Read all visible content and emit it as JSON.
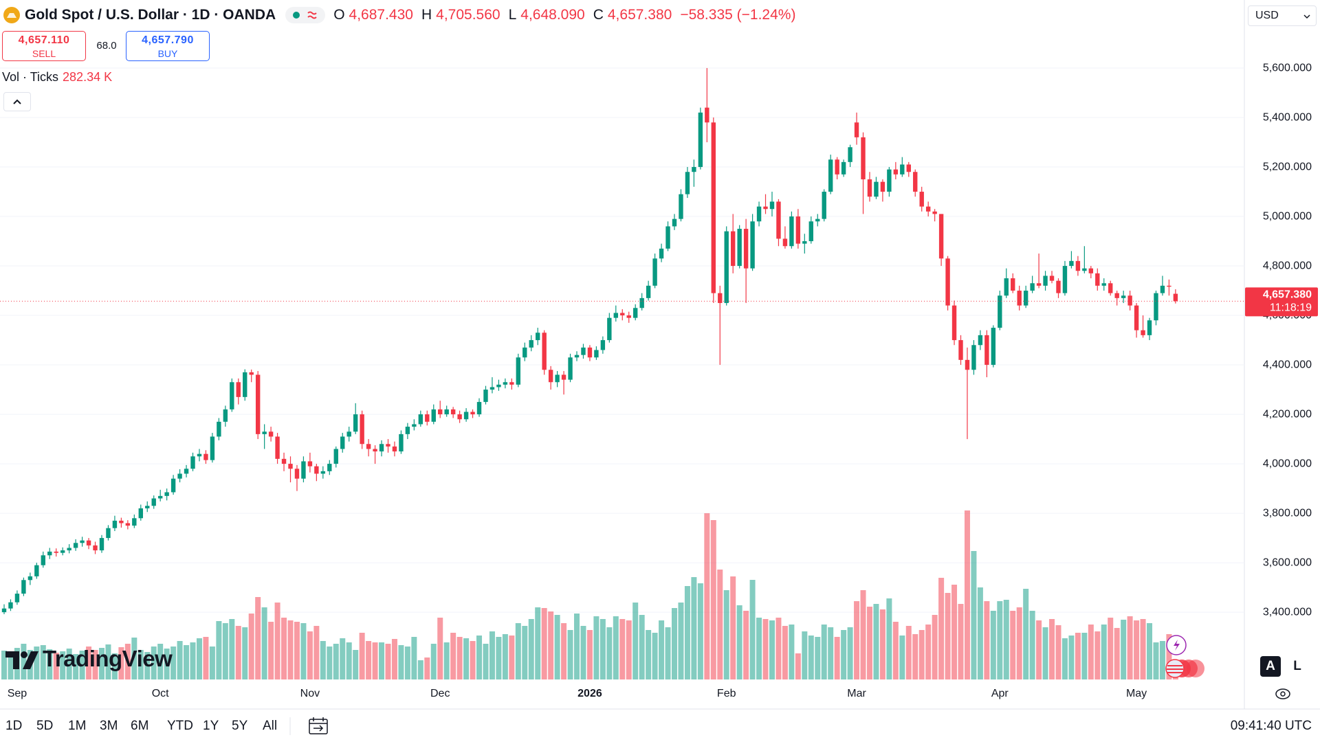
{
  "header": {
    "symbol": "Gold Spot / U.S. Dollar · 1D · OANDA",
    "open_label": "O",
    "open": "4,687.430",
    "high_label": "H",
    "high": "4,705.560",
    "low_label": "L",
    "low": "4,648.090",
    "close_label": "C",
    "close": "4,657.380",
    "change": "−58.335 (−1.24%)"
  },
  "quote": {
    "sell_price": "4,657.110",
    "sell": "SELL",
    "spread": "68.0",
    "buy_price": "4,657.790",
    "buy": "BUY"
  },
  "currency": "USD",
  "watermark": "TradingView",
  "scale_buttons": [
    "A",
    "L"
  ],
  "toolbar": {
    "ranges": [
      "1D",
      "5D",
      "1M",
      "3M",
      "6M",
      "YTD",
      "1Y",
      "5Y",
      "All"
    ],
    "clock": "09:41:40 UTC"
  },
  "chart_data": {
    "type": "candlestick",
    "volume_title": "Vol · Ticks",
    "volume_label": "282.34 K",
    "up_color": "#089981",
    "down_color": "#f23645",
    "ylim": [
      3128,
      5764
    ],
    "yticks": [
      {
        "value": 3400,
        "label": "3,400.000"
      },
      {
        "value": 3600,
        "label": "3,600.000"
      },
      {
        "value": 3800,
        "label": "3,800.000"
      },
      {
        "value": 4000,
        "label": "4,000.000"
      },
      {
        "value": 4200,
        "label": "4,200.000"
      },
      {
        "value": 4400,
        "label": "4,400.000"
      },
      {
        "value": 4600,
        "label": "4,600.000"
      },
      {
        "value": 4800,
        "label": "4,800.000"
      },
      {
        "value": 5000,
        "label": "5,000.000"
      },
      {
        "value": 5200,
        "label": "5,200.000"
      },
      {
        "value": 5400,
        "label": "5,400.000"
      },
      {
        "value": 5600,
        "label": "5,600.000"
      }
    ],
    "grid": true,
    "last_price": {
      "value": 4657.38,
      "label": "4,657.380"
    },
    "countdown": "11:18:19",
    "categories": [
      null,
      null,
      "Sep",
      null,
      null,
      null,
      null,
      null,
      null,
      null,
      null,
      null,
      null,
      null,
      null,
      null,
      null,
      null,
      null,
      null,
      null,
      null,
      null,
      null,
      "Oct",
      null,
      null,
      null,
      null,
      null,
      null,
      null,
      null,
      null,
      null,
      null,
      null,
      null,
      null,
      null,
      null,
      null,
      null,
      null,
      null,
      null,
      null,
      "Nov",
      null,
      null,
      null,
      null,
      null,
      null,
      null,
      null,
      null,
      null,
      null,
      null,
      null,
      null,
      null,
      null,
      null,
      null,
      null,
      "Dec",
      null,
      null,
      null,
      null,
      null,
      null,
      null,
      null,
      null,
      null,
      null,
      null,
      null,
      null,
      null,
      null,
      null,
      null,
      null,
      null,
      null,
      null,
      "2026",
      null,
      null,
      null,
      null,
      null,
      null,
      null,
      null,
      null,
      null,
      null,
      null,
      null,
      null,
      null,
      null,
      null,
      null,
      null,
      null,
      "Feb",
      null,
      null,
      null,
      null,
      null,
      null,
      null,
      null,
      null,
      null,
      null,
      null,
      null,
      null,
      null,
      null,
      null,
      null,
      null,
      "Mar",
      null,
      null,
      null,
      null,
      null,
      null,
      null,
      null,
      null,
      null,
      null,
      null,
      null,
      null,
      null,
      null,
      null,
      null,
      null,
      null,
      null,
      "Apr",
      null,
      null,
      null,
      null,
      null,
      null,
      null,
      null,
      null,
      null,
      null,
      null,
      null,
      null,
      null,
      null,
      null,
      null,
      null,
      null,
      "May",
      null,
      null,
      null,
      null,
      null,
      null
    ],
    "ohlc": [
      [
        3400,
        3432,
        3392,
        3415
      ],
      [
        3415,
        3452,
        3405,
        3440
      ],
      [
        3440,
        3488,
        3430,
        3475
      ],
      [
        3475,
        3540,
        3465,
        3530
      ],
      [
        3530,
        3560,
        3510,
        3545
      ],
      [
        3545,
        3600,
        3535,
        3590
      ],
      [
        3590,
        3645,
        3580,
        3630
      ],
      [
        3630,
        3660,
        3615,
        3645
      ],
      [
        3645,
        3658,
        3625,
        3640
      ],
      [
        3640,
        3662,
        3630,
        3650
      ],
      [
        3650,
        3675,
        3638,
        3660
      ],
      [
        3660,
        3695,
        3648,
        3680
      ],
      [
        3680,
        3705,
        3665,
        3690
      ],
      [
        3690,
        3700,
        3655,
        3670
      ],
      [
        3670,
        3685,
        3635,
        3650
      ],
      [
        3650,
        3712,
        3640,
        3700
      ],
      [
        3700,
        3752,
        3690,
        3740
      ],
      [
        3740,
        3790,
        3728,
        3770
      ],
      [
        3770,
        3782,
        3742,
        3760
      ],
      [
        3760,
        3772,
        3735,
        3750
      ],
      [
        3750,
        3795,
        3740,
        3780
      ],
      [
        3780,
        3835,
        3770,
        3820
      ],
      [
        3820,
        3848,
        3805,
        3830
      ],
      [
        3830,
        3872,
        3818,
        3860
      ],
      [
        3860,
        3895,
        3848,
        3870
      ],
      [
        3870,
        3900,
        3852,
        3885
      ],
      [
        3885,
        3955,
        3875,
        3940
      ],
      [
        3940,
        3978,
        3925,
        3960
      ],
      [
        3960,
        3995,
        3945,
        3980
      ],
      [
        3980,
        4045,
        3970,
        4030
      ],
      [
        4030,
        4060,
        4010,
        4040
      ],
      [
        4040,
        4055,
        4000,
        4015
      ],
      [
        4015,
        4125,
        4005,
        4110
      ],
      [
        4110,
        4185,
        4095,
        4170
      ],
      [
        4170,
        4235,
        4150,
        4220
      ],
      [
        4220,
        4345,
        4210,
        4330
      ],
      [
        4330,
        4345,
        4240,
        4270
      ],
      [
        4270,
        4382,
        4255,
        4370
      ],
      [
        4370,
        4381,
        4330,
        4360
      ],
      [
        4360,
        4375,
        4100,
        4120
      ],
      [
        4120,
        4160,
        4060,
        4130
      ],
      [
        4130,
        4150,
        4090,
        4110
      ],
      [
        4110,
        4125,
        4000,
        4020
      ],
      [
        4020,
        4045,
        3970,
        4000
      ],
      [
        4000,
        4030,
        3925,
        3980
      ],
      [
        3980,
        3995,
        3890,
        3940
      ],
      [
        3940,
        4030,
        3925,
        4010
      ],
      [
        4010,
        4045,
        3965,
        3990
      ],
      [
        3990,
        4000,
        3930,
        3960
      ],
      [
        3960,
        3990,
        3940,
        3970
      ],
      [
        3970,
        4015,
        3955,
        4000
      ],
      [
        4000,
        4070,
        3985,
        4060
      ],
      [
        4060,
        4125,
        4045,
        4110
      ],
      [
        4110,
        4150,
        4090,
        4130
      ],
      [
        4130,
        4245,
        4120,
        4200
      ],
      [
        4200,
        4215,
        4060,
        4080
      ],
      [
        4080,
        4100,
        4030,
        4060
      ],
      [
        4060,
        4075,
        4000,
        4050
      ],
      [
        4050,
        4095,
        4030,
        4080
      ],
      [
        4080,
        4100,
        4045,
        4070
      ],
      [
        4070,
        4090,
        4030,
        4050
      ],
      [
        4050,
        4135,
        4040,
        4120
      ],
      [
        4120,
        4165,
        4100,
        4150
      ],
      [
        4150,
        4180,
        4135,
        4160
      ],
      [
        4160,
        4215,
        4150,
        4200
      ],
      [
        4200,
        4215,
        4155,
        4170
      ],
      [
        4170,
        4240,
        4160,
        4220
      ],
      [
        4220,
        4255,
        4185,
        4200
      ],
      [
        4200,
        4235,
        4190,
        4220
      ],
      [
        4220,
        4230,
        4185,
        4200
      ],
      [
        4200,
        4215,
        4165,
        4180
      ],
      [
        4180,
        4225,
        4170,
        4210
      ],
      [
        4210,
        4220,
        4185,
        4200
      ],
      [
        4200,
        4265,
        4190,
        4250
      ],
      [
        4250,
        4315,
        4240,
        4300
      ],
      [
        4300,
        4350,
        4285,
        4310
      ],
      [
        4310,
        4340,
        4295,
        4320
      ],
      [
        4320,
        4345,
        4305,
        4330
      ],
      [
        4330,
        4345,
        4300,
        4320
      ],
      [
        4320,
        4445,
        4310,
        4430
      ],
      [
        4430,
        4490,
        4415,
        4470
      ],
      [
        4470,
        4520,
        4455,
        4500
      ],
      [
        4500,
        4550,
        4480,
        4530
      ],
      [
        4530,
        4540,
        4360,
        4380
      ],
      [
        4380,
        4395,
        4300,
        4330
      ],
      [
        4330,
        4375,
        4310,
        4360
      ],
      [
        4360,
        4375,
        4280,
        4340
      ],
      [
        4340,
        4445,
        4330,
        4430
      ],
      [
        4430,
        4455,
        4415,
        4440
      ],
      [
        4440,
        4485,
        4425,
        4470
      ],
      [
        4470,
        4480,
        4415,
        4430
      ],
      [
        4430,
        4475,
        4420,
        4460
      ],
      [
        4460,
        4515,
        4445,
        4500
      ],
      [
        4500,
        4610,
        4490,
        4590
      ],
      [
        4590,
        4640,
        4575,
        4610
      ],
      [
        4610,
        4625,
        4580,
        4600
      ],
      [
        4600,
        4615,
        4570,
        4590
      ],
      [
        4590,
        4645,
        4580,
        4630
      ],
      [
        4630,
        4690,
        4620,
        4670
      ],
      [
        4670,
        4740,
        4660,
        4720
      ],
      [
        4720,
        4850,
        4710,
        4830
      ],
      [
        4830,
        4890,
        4815,
        4870
      ],
      [
        4870,
        4980,
        4860,
        4960
      ],
      [
        4960,
        5010,
        4945,
        4990
      ],
      [
        4990,
        5110,
        4980,
        5090
      ],
      [
        5090,
        5200,
        5075,
        5180
      ],
      [
        5180,
        5230,
        5120,
        5200
      ],
      [
        5200,
        5440,
        5190,
        5420
      ],
      [
        5440,
        5600,
        5300,
        5380
      ],
      [
        5380,
        5400,
        4650,
        4690
      ],
      [
        4690,
        4720,
        4400,
        4650
      ],
      [
        4650,
        4960,
        4640,
        4940
      ],
      [
        4940,
        5010,
        4770,
        4800
      ],
      [
        4800,
        4965,
        4790,
        4950
      ],
      [
        4950,
        4990,
        4650,
        4790
      ],
      [
        4790,
        5010,
        4780,
        4980
      ],
      [
        4980,
        5060,
        4960,
        5040
      ],
      [
        5040,
        5090,
        5010,
        5030
      ],
      [
        5030,
        5100,
        5000,
        5060
      ],
      [
        5060,
        5070,
        4880,
        4910
      ],
      [
        4910,
        4960,
        4870,
        4880
      ],
      [
        4880,
        5020,
        4870,
        5000
      ],
      [
        5000,
        5030,
        4870,
        4890
      ],
      [
        4890,
        4930,
        4850,
        4900
      ],
      [
        4900,
        5000,
        4890,
        4980
      ],
      [
        4980,
        5010,
        4960,
        4990
      ],
      [
        4990,
        5110,
        4980,
        5100
      ],
      [
        5100,
        5250,
        5090,
        5230
      ],
      [
        5230,
        5240,
        5150,
        5170
      ],
      [
        5170,
        5230,
        5160,
        5220
      ],
      [
        5220,
        5290,
        5200,
        5280
      ],
      [
        5380,
        5420,
        5290,
        5320
      ],
      [
        5320,
        5340,
        5010,
        5150
      ],
      [
        5150,
        5180,
        5060,
        5080
      ],
      [
        5080,
        5160,
        5070,
        5140
      ],
      [
        5140,
        5150,
        5060,
        5100
      ],
      [
        5100,
        5200,
        5080,
        5190
      ],
      [
        5190,
        5220,
        5150,
        5170
      ],
      [
        5170,
        5240,
        5160,
        5210
      ],
      [
        5210,
        5220,
        5160,
        5180
      ],
      [
        5180,
        5190,
        5080,
        5100
      ],
      [
        5100,
        5120,
        5020,
        5040
      ],
      [
        5040,
        5060,
        5000,
        5020
      ],
      [
        5020,
        5030,
        4980,
        5010
      ],
      [
        5010,
        5010,
        4800,
        4830
      ],
      [
        4830,
        4840,
        4620,
        4640
      ],
      [
        4640,
        4660,
        4480,
        4500
      ],
      [
        4500,
        4520,
        4400,
        4420
      ],
      [
        4420,
        4470,
        4100,
        4380
      ],
      [
        4380,
        4500,
        4360,
        4480
      ],
      [
        4480,
        4540,
        4460,
        4520
      ],
      [
        4520,
        4540,
        4350,
        4400
      ],
      [
        4400,
        4560,
        4390,
        4550
      ],
      [
        4550,
        4700,
        4540,
        4680
      ],
      [
        4680,
        4790,
        4670,
        4750
      ],
      [
        4750,
        4770,
        4690,
        4700
      ],
      [
        4700,
        4720,
        4620,
        4640
      ],
      [
        4640,
        4720,
        4630,
        4700
      ],
      [
        4700,
        4760,
        4690,
        4730
      ],
      [
        4730,
        4850,
        4710,
        4720
      ],
      [
        4720,
        4780,
        4700,
        4760
      ],
      [
        4760,
        4780,
        4730,
        4740
      ],
      [
        4740,
        4750,
        4670,
        4690
      ],
      [
        4690,
        4820,
        4680,
        4800
      ],
      [
        4800,
        4860,
        4790,
        4820
      ],
      [
        4820,
        4840,
        4760,
        4780
      ],
      [
        4780,
        4880,
        4770,
        4790
      ],
      [
        4790,
        4800,
        4750,
        4770
      ],
      [
        4770,
        4790,
        4700,
        4720
      ],
      [
        4720,
        4750,
        4700,
        4730
      ],
      [
        4730,
        4740,
        4680,
        4690
      ],
      [
        4690,
        4700,
        4640,
        4670
      ],
      [
        4670,
        4700,
        4650,
        4680
      ],
      [
        4680,
        4700,
        4620,
        4640
      ],
      [
        4640,
        4650,
        4510,
        4540
      ],
      [
        4540,
        4600,
        4510,
        4520
      ],
      [
        4520,
        4590,
        4500,
        4580
      ],
      [
        4580,
        4700,
        4560,
        4690
      ],
      [
        4690,
        4760,
        4680,
        4720
      ],
      [
        4720,
        4745,
        4680,
        4716
      ],
      [
        4687.43,
        4705.56,
        4648.09,
        4657.38
      ]
    ],
    "volumes": [
      420,
      380,
      460,
      520,
      430,
      480,
      500,
      440,
      390,
      410,
      450,
      370,
      420,
      480,
      430,
      460,
      510,
      380,
      470,
      520,
      610,
      430,
      400,
      480,
      520,
      450,
      480,
      560,
      500,
      540,
      600,
      620,
      480,
      850,
      820,
      880,
      780,
      760,
      960,
      1200,
      1050,
      840,
      1120,
      900,
      860,
      840,
      820,
      700,
      780,
      560,
      480,
      520,
      600,
      540,
      430,
      680,
      560,
      540,
      540,
      520,
      590,
      500,
      480,
      620,
      280,
      320,
      520,
      900,
      540,
      680,
      620,
      600,
      560,
      640,
      520,
      700,
      620,
      660,
      640,
      820,
      780,
      880,
      1050,
      1040,
      990,
      940,
      820,
      720,
      960,
      780,
      720,
      920,
      880,
      760,
      920,
      880,
      860,
      1120,
      940,
      720,
      680,
      860,
      760,
      1040,
      1120,
      1360,
      1490,
      1400,
      2420,
      2320,
      1600,
      1300,
      1500,
      1080,
      1000,
      1450,
      900,
      880,
      860,
      900,
      780,
      800,
      380,
      700,
      640,
      620,
      800,
      760,
      620,
      720,
      760,
      1140,
      1300,
      1060,
      1100,
      1020,
      1180,
      840,
      640,
      780,
      660,
      720,
      800,
      940,
      1480,
      1260,
      1380,
      1100,
      2460,
      1870,
      1340,
      1140,
      1000,
      1140,
      1160,
      1000,
      1050,
      1320,
      1000,
      860,
      760,
      880,
      790,
      600,
      640,
      680,
      680,
      800,
      700,
      800,
      900,
      750,
      870,
      920,
      860,
      880,
      820,
      540,
      560,
      660,
      282.34
    ]
  }
}
